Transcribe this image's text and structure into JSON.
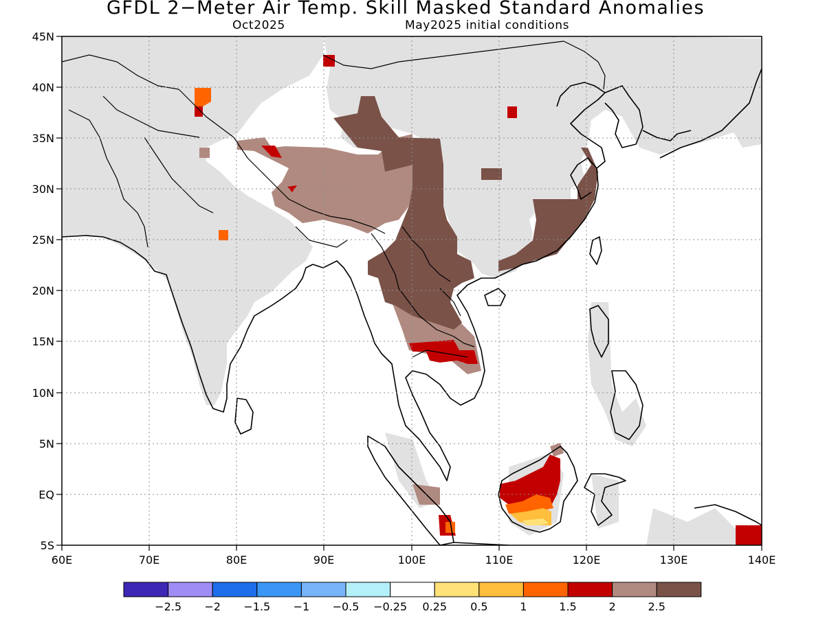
{
  "title": "GFDL 2−Meter Air Temp. Skill Masked Standard Anomalies",
  "subtitle_left": "Oct2025",
  "subtitle_right": "May2025 initial conditions",
  "axes": {
    "lon_ticks": [
      "60E",
      "70E",
      "80E",
      "90E",
      "100E",
      "110E",
      "120E",
      "130E",
      "140E"
    ],
    "lat_ticks": [
      "45N",
      "40N",
      "35N",
      "30N",
      "25N",
      "20N",
      "15N",
      "10N",
      "5N",
      "EQ",
      "5S"
    ]
  },
  "map": {
    "lon_range": [
      60,
      140
    ],
    "lat_range": [
      -5,
      45
    ],
    "grid": "dotted",
    "colors": {
      "land_masked": "#e1e1e1",
      "near_normal": "#ffffff",
      "anomaly_1": "#ff6400",
      "anomaly_1_5": "#c30000",
      "anomaly_2": "#b08a80",
      "anomaly_2_5": "#7a5248",
      "anomaly_0_5": "#ffbe3c"
    }
  },
  "colorbar": {
    "colors": [
      "#3c28b4",
      "#a08cf5",
      "#1e6eeb",
      "#3c96f5",
      "#78b4fa",
      "#b4f0fa",
      "#ffffff",
      "#ffe178",
      "#ffbe3c",
      "#ff6400",
      "#c30000",
      "#b08a80",
      "#7a5248"
    ],
    "labels": [
      "−2.5",
      "−2",
      "−1.5",
      "−1",
      "−0.5",
      "−0.25",
      "0.25",
      "0.5",
      "1",
      "1.5",
      "2",
      "2.5"
    ]
  }
}
